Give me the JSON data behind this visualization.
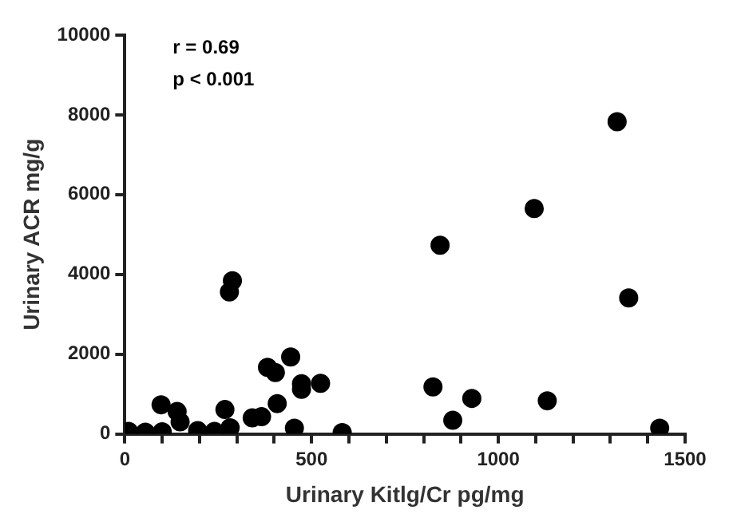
{
  "chart_data": {
    "type": "scatter",
    "xlabel": "Urinary Kitlg/Cr pg/mg",
    "ylabel": "Urinary ACR mg/g",
    "annotations": [
      "r = 0.69",
      "p < 0.001"
    ],
    "x": [
      10,
      55,
      100,
      195,
      240,
      282,
      97,
      140,
      148,
      268,
      288,
      280,
      444,
      382,
      403,
      473,
      473,
      524,
      408,
      341,
      366,
      454,
      582,
      825,
      844,
      878,
      929,
      1096,
      1131,
      1318,
      1349,
      1432
    ],
    "values": [
      60,
      40,
      50,
      80,
      60,
      150,
      730,
      560,
      300,
      610,
      3840,
      3560,
      1930,
      1670,
      1540,
      1260,
      1120,
      1270,
      760,
      400,
      430,
      140,
      30,
      1180,
      4730,
      340,
      890,
      5650,
      830,
      7830,
      3410,
      140
    ],
    "color": "#000000",
    "marker": "circle",
    "grid": false,
    "legend": false,
    "xlim": [
      0,
      1500
    ],
    "ylim": [
      0,
      10000
    ],
    "xticks": [
      0,
      {
        "value": 100,
        "label": null
      },
      {
        "value": 200,
        "label": null
      },
      {
        "value": 300,
        "label": null
      },
      {
        "value": 400,
        "label": null
      },
      500,
      {
        "value": 600,
        "label": null
      },
      {
        "value": 700,
        "label": null
      },
      {
        "value": 800,
        "label": null
      },
      {
        "value": 900,
        "label": null
      },
      1000,
      {
        "value": 1100,
        "label": null
      },
      {
        "value": 1200,
        "label": null
      },
      {
        "value": 1300,
        "label": null
      },
      {
        "value": 1400,
        "label": null
      },
      1500
    ],
    "yticks": [
      0,
      2000,
      4000,
      6000,
      8000,
      10000
    ]
  }
}
